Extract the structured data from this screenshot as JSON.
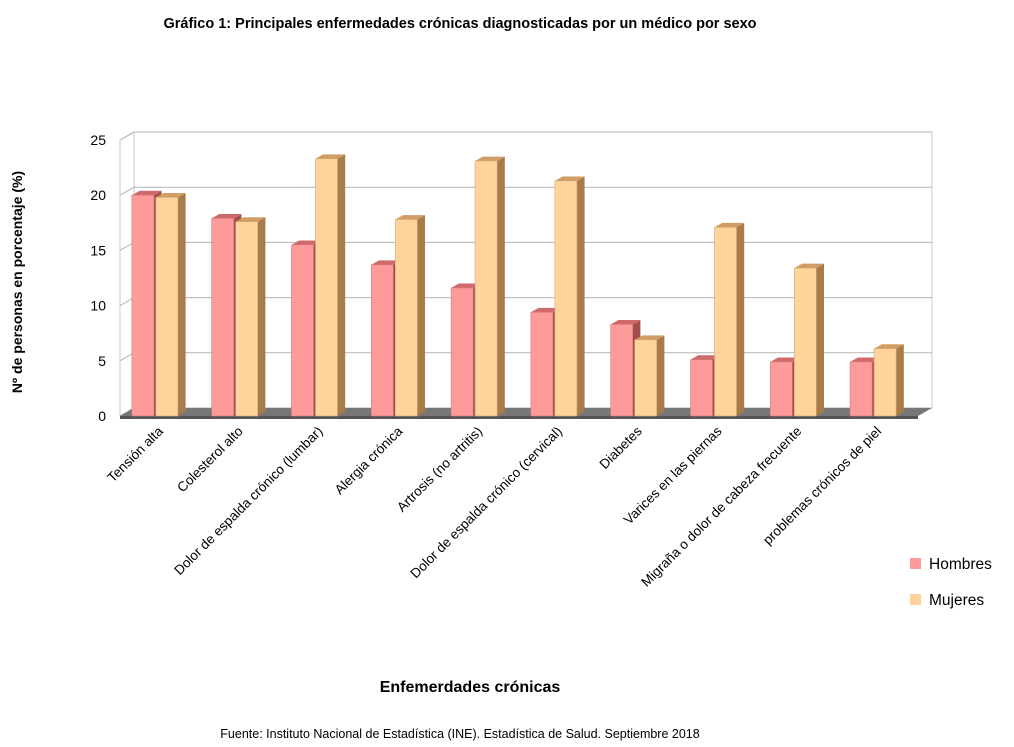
{
  "chart_data": {
    "type": "bar",
    "title": "Gráfico 1: Principales enfermedades crónicas diagnosticadas por un médico por sexo",
    "xlabel": "Enfemerdades crónicas",
    "ylabel": "Nº de personas en porcentaje (%)",
    "ylim": [
      0,
      25
    ],
    "yticks": [
      "0",
      "5",
      "10",
      "15",
      "20",
      "25"
    ],
    "grid": true,
    "legend_position": "right",
    "categories": [
      "Tensión alta",
      "Colesterol alto",
      "Dolor de espalda crónico (lumbar)",
      "Alergia crónica",
      "Artrosis (no artritis)",
      "Dolor de espalda crónico (cervical)",
      "Diabetes",
      "Varices en las piernas",
      "Migraña o dolor de cabeza frecuente",
      "problemas crónicos de piel"
    ],
    "series": [
      {
        "name": "Hombres",
        "color": "#ff9a9a",
        "values": [
          20.0,
          17.9,
          15.5,
          13.7,
          11.6,
          9.4,
          8.3,
          5.1,
          4.9,
          4.9
        ]
      },
      {
        "name": "Mujeres",
        "color": "#ffd39a",
        "values": [
          19.8,
          17.6,
          23.3,
          17.8,
          23.1,
          21.3,
          6.9,
          17.1,
          13.4,
          6.1
        ]
      }
    ]
  },
  "source": "Fuente: Instituto Nacional de Estadística (INE). Estadística de Salud. Septiembre 2018"
}
